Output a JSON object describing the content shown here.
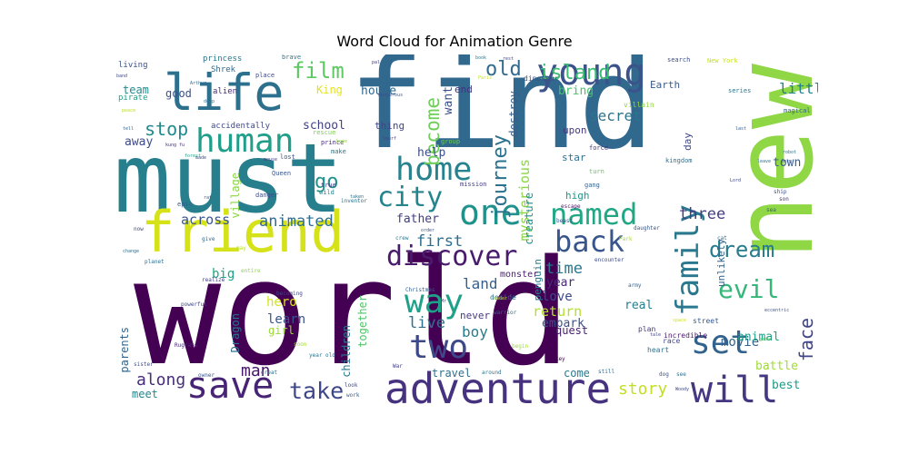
{
  "title": "Word Cloud for Animation Genre",
  "words": [
    {
      "text": "world",
      "color": "#440154",
      "weight": 100
    },
    {
      "text": "find",
      "color": "#31688e",
      "weight": 98
    },
    {
      "text": "new",
      "color": "#8fd744",
      "weight": 80
    },
    {
      "text": "must",
      "color": "#277f8e",
      "weight": 60
    },
    {
      "text": "friend",
      "color": "#d5e21a",
      "weight": 50
    },
    {
      "text": "life",
      "color": "#2d708e",
      "weight": 45
    },
    {
      "text": "adventure",
      "color": "#46327e",
      "weight": 42
    },
    {
      "text": "young",
      "color": "#3b528b",
      "weight": 40
    },
    {
      "text": "home",
      "color": "#26838e",
      "weight": 38
    },
    {
      "text": "save",
      "color": "#482475",
      "weight": 36
    },
    {
      "text": "one",
      "color": "#21918c",
      "weight": 35
    },
    {
      "text": "two",
      "color": "#3e4989",
      "weight": 34
    },
    {
      "text": "family",
      "color": "#2a788e",
      "weight": 33
    },
    {
      "text": "will",
      "color": "#453781",
      "weight": 32
    },
    {
      "text": "human",
      "color": "#1f9e89",
      "weight": 31
    },
    {
      "text": "named",
      "color": "#22a785",
      "weight": 30
    },
    {
      "text": "set",
      "color": "#33638d",
      "weight": 30
    },
    {
      "text": "back",
      "color": "#39568c",
      "weight": 29
    },
    {
      "text": "way",
      "color": "#1fa188",
      "weight": 28
    },
    {
      "text": "discover",
      "color": "#481b6d",
      "weight": 27
    },
    {
      "text": "evil",
      "color": "#35b779",
      "weight": 26
    },
    {
      "text": "city",
      "color": "#25848e",
      "weight": 25
    },
    {
      "text": "take",
      "color": "#3f4788",
      "weight": 24
    },
    {
      "text": "dream",
      "color": "#287c8e",
      "weight": 23
    },
    {
      "text": "film",
      "color": "#5ec962",
      "weight": 22
    },
    {
      "text": "journey",
      "color": "#2c728e",
      "weight": 22
    },
    {
      "text": "stop",
      "color": "#238a8d",
      "weight": 21
    },
    {
      "text": "go",
      "color": "#20928c",
      "weight": 20
    },
    {
      "text": "old",
      "color": "#306a8e",
      "weight": 20
    },
    {
      "text": "island",
      "color": "#3dbc74",
      "weight": 20
    },
    {
      "text": "become",
      "color": "#6ece58",
      "weight": 19
    },
    {
      "text": "face",
      "color": "#404588",
      "weight": 18
    },
    {
      "text": "along",
      "color": "#472d7b",
      "weight": 18
    },
    {
      "text": "animated",
      "color": "#2f6c8e",
      "weight": 17
    },
    {
      "text": "first",
      "color": "#2e6e8e",
      "weight": 17
    },
    {
      "text": "story",
      "color": "#c2df23",
      "weight": 17
    },
    {
      "text": "man",
      "color": "#481668",
      "weight": 17
    },
    {
      "text": "land",
      "color": "#34608d",
      "weight": 16
    },
    {
      "text": "live",
      "color": "#2e6f8e",
      "weight": 16
    },
    {
      "text": "time",
      "color": "#2a768e",
      "weight": 16
    },
    {
      "text": "three",
      "color": "#433d84",
      "weight": 16
    },
    {
      "text": "little",
      "color": "#26818e",
      "weight": 15
    },
    {
      "text": "secret",
      "color": "#2b748e",
      "weight": 15
    },
    {
      "text": "across",
      "color": "#39558c",
      "weight": 15
    },
    {
      "text": "boy",
      "color": "#297b8e",
      "weight": 15
    },
    {
      "text": "mysterious",
      "color": "#8bd646",
      "weight": 15
    },
    {
      "text": "return",
      "color": "#b5de2b",
      "weight": 14
    },
    {
      "text": "learn",
      "color": "#3a548c",
      "weight": 14
    },
    {
      "text": "hero",
      "color": "#d8e219",
      "weight": 14
    },
    {
      "text": "movie",
      "color": "#33628d",
      "weight": 14
    },
    {
      "text": "big",
      "color": "#20a386",
      "weight": 14
    },
    {
      "text": "love",
      "color": "#3f4889",
      "weight": 14
    },
    {
      "text": "animal",
      "color": "#1f9f88",
      "weight": 14
    },
    {
      "text": "house",
      "color": "#31678e",
      "weight": 13
    },
    {
      "text": "away",
      "color": "#3e4c8a",
      "weight": 13
    },
    {
      "text": "bring",
      "color": "#48c16e",
      "weight": 13
    },
    {
      "text": "want",
      "color": "#3c4f8a",
      "weight": 13
    },
    {
      "text": "help",
      "color": "#3d4d8a",
      "weight": 13
    },
    {
      "text": "town",
      "color": "#365d8d",
      "weight": 13
    },
    {
      "text": "school",
      "color": "#424186",
      "weight": 13
    },
    {
      "text": "father",
      "color": "#423f85",
      "weight": 13
    },
    {
      "text": "year",
      "color": "#482979",
      "weight": 13
    },
    {
      "text": "embark",
      "color": "#3c508b",
      "weight": 13
    },
    {
      "text": "quest",
      "color": "#481f70",
      "weight": 13
    },
    {
      "text": "real",
      "color": "#277e8e",
      "weight": 13
    },
    {
      "text": "battle",
      "color": "#a0da39",
      "weight": 13
    },
    {
      "text": "best",
      "color": "#1e9b8a",
      "weight": 13
    },
    {
      "text": "come",
      "color": "#29798e",
      "weight": 12
    },
    {
      "text": "travel",
      "color": "#2d718e",
      "weight": 12
    },
    {
      "text": "meet",
      "color": "#24868e",
      "weight": 12
    },
    {
      "text": "children",
      "color": "#2a778e",
      "weight": 12
    },
    {
      "text": "together",
      "color": "#52c569",
      "weight": 12
    },
    {
      "text": "creature",
      "color": "#20938c",
      "weight": 12
    },
    {
      "text": "destroy",
      "color": "#355f8d",
      "weight": 12
    },
    {
      "text": "team",
      "color": "#228b8d",
      "weight": 12
    },
    {
      "text": "King",
      "color": "#e5e419",
      "weight": 12
    },
    {
      "text": "good",
      "color": "#3b518b",
      "weight": 12
    },
    {
      "text": "girl",
      "color": "#9bd93c",
      "weight": 12
    },
    {
      "text": "parents",
      "color": "#32658e",
      "weight": 12
    },
    {
      "text": "Dragon",
      "color": "#2c738e",
      "weight": 12
    },
    {
      "text": "village",
      "color": "#8bd646",
      "weight": 12
    },
    {
      "text": "end",
      "color": "#46307e",
      "weight": 11
    },
    {
      "text": "Earth",
      "color": "#375a8c",
      "weight": 11
    },
    {
      "text": "thing",
      "color": "#414487",
      "weight": 11
    },
    {
      "text": "high",
      "color": "#1f968b",
      "weight": 11
    },
    {
      "text": "star",
      "color": "#2c718e",
      "weight": 11
    },
    {
      "text": "upon",
      "color": "#453882",
      "weight": 11
    },
    {
      "text": "day",
      "color": "#3f4788",
      "weight": 11
    },
    {
      "text": "penguin",
      "color": "#287d8e",
      "weight": 11
    },
    {
      "text": "unlikely",
      "color": "#32648e",
      "weight": 11
    },
    {
      "text": "never",
      "color": "#443983",
      "weight": 11
    },
    {
      "text": "monster",
      "color": "#481f70",
      "weight": 10
    },
    {
      "text": "accidentally",
      "color": "#3e4989",
      "weight": 9
    },
    {
      "text": "princess",
      "color": "#2a768e",
      "weight": 9
    },
    {
      "text": "Shrek",
      "color": "#31688e",
      "weight": 9
    },
    {
      "text": "living",
      "color": "#3a538b",
      "weight": 9
    },
    {
      "text": "alien",
      "color": "#472c7a",
      "weight": 9
    },
    {
      "text": "pirate",
      "color": "#1fa187",
      "weight": 9
    },
    {
      "text": "incredible",
      "color": "#48186a",
      "weight": 9
    },
    {
      "text": "heart",
      "color": "#2c738e",
      "weight": 8
    },
    {
      "text": "plan",
      "color": "#453781",
      "weight": 8
    },
    {
      "text": "race",
      "color": "#404688",
      "weight": 8
    },
    {
      "text": "street",
      "color": "#375b8d",
      "weight": 8
    },
    {
      "text": "decide",
      "color": "#2e6e8e",
      "weight": 8
    },
    {
      "text": "dinosaur",
      "color": "#3c4f8a",
      "weight": 8
    },
    {
      "text": "villain",
      "color": "#95d840",
      "weight": 8
    },
    {
      "text": "magical",
      "color": "#34618d",
      "weight": 7
    },
    {
      "text": "series",
      "color": "#2b758e",
      "weight": 7
    },
    {
      "text": "search",
      "color": "#3b518b",
      "weight": 7
    },
    {
      "text": "New York",
      "color": "#c8e020",
      "weight": 7
    },
    {
      "text": "brave",
      "color": "#29798e",
      "weight": 7
    },
    {
      "text": "place",
      "color": "#3e4a89",
      "weight": 7
    },
    {
      "text": "rescue",
      "color": "#7ad151",
      "weight": 7
    },
    {
      "text": "prince",
      "color": "#472a7a",
      "weight": 7
    },
    {
      "text": "mission",
      "color": "#423f85",
      "weight": 7
    },
    {
      "text": "group",
      "color": "#6ccd5a",
      "weight": 7
    },
    {
      "text": "kingdom",
      "color": "#2c728e",
      "weight": 7
    },
    {
      "text": "force",
      "color": "#46327e",
      "weight": 7
    },
    {
      "text": "turn",
      "color": "#5ec962",
      "weight": 7
    },
    {
      "text": "gang",
      "color": "#355e8d",
      "weight": 7
    },
    {
      "text": "wild",
      "color": "#26828e",
      "weight": 7
    },
    {
      "text": "true",
      "color": "#433e85",
      "weight": 7
    },
    {
      "text": "lost",
      "color": "#3b518b",
      "weight": 7
    },
    {
      "text": "make",
      "color": "#2a778e",
      "weight": 7
    },
    {
      "text": "Queen",
      "color": "#39568c",
      "weight": 7
    },
    {
      "text": "danger",
      "color": "#3e4a89",
      "weight": 7
    },
    {
      "text": "epic",
      "color": "#365c8d",
      "weight": 7
    },
    {
      "text": "inventor",
      "color": "#2c718e",
      "weight": 6
    },
    {
      "text": "crew",
      "color": "#2a788e",
      "weight": 6
    },
    {
      "text": "escape",
      "color": "#481467",
      "weight": 6
    },
    {
      "text": "beast",
      "color": "#3a548c",
      "weight": 6
    },
    {
      "text": "daughter",
      "color": "#39558c",
      "weight": 6
    },
    {
      "text": "son",
      "color": "#472e7c",
      "weight": 6
    },
    {
      "text": "ship",
      "color": "#3c4f8a",
      "weight": 6
    },
    {
      "text": "sea",
      "color": "#365d8d",
      "weight": 6
    },
    {
      "text": "cat",
      "color": "#2e6f8e",
      "weight": 6
    },
    {
      "text": "Park",
      "color": "#a8db34",
      "weight": 6
    },
    {
      "text": "give",
      "color": "#2f6b8e",
      "weight": 6
    },
    {
      "text": "planet",
      "color": "#2d718e",
      "weight": 6
    },
    {
      "text": "now",
      "color": "#3f4788",
      "weight": 6
    },
    {
      "text": "may",
      "color": "#b5de2b",
      "weight": 6
    },
    {
      "text": "realize",
      "color": "#433d84",
      "weight": 6
    },
    {
      "text": "powerful",
      "color": "#3f4889",
      "weight": 6
    },
    {
      "text": "entire",
      "color": "#8bd646",
      "weight": 6
    },
    {
      "text": "becoming",
      "color": "#404588",
      "weight": 6
    },
    {
      "text": "Christmas",
      "color": "#355e8d",
      "weight": 6
    },
    {
      "text": "warrior",
      "color": "#2e6d8e",
      "weight": 6
    },
    {
      "text": "army",
      "color": "#34618d",
      "weight": 6
    },
    {
      "text": "encounter",
      "color": "#3d4d8a",
      "weight": 6
    },
    {
      "text": "Rugrats",
      "color": "#482878",
      "weight": 6
    },
    {
      "text": "soon",
      "color": "#a2da37",
      "weight": 6
    },
    {
      "text": "begin",
      "color": "#9fda3a",
      "weight": 6
    },
    {
      "text": "year old",
      "color": "#2c728e",
      "weight": 6
    },
    {
      "text": "sister",
      "color": "#3d4e8a",
      "weight": 6
    },
    {
      "text": "owner",
      "color": "#3a538b",
      "weight": 6
    },
    {
      "text": "great",
      "color": "#2d708e",
      "weight": 6
    },
    {
      "text": "look",
      "color": "#3e4a89",
      "weight": 6
    },
    {
      "text": "work",
      "color": "#355f8d",
      "weight": 6
    },
    {
      "text": "War",
      "color": "#424086",
      "weight": 6
    },
    {
      "text": "around",
      "color": "#2b758e",
      "weight": 6
    },
    {
      "text": "monkey",
      "color": "#440154",
      "weight": 6
    },
    {
      "text": "still",
      "color": "#2f6c8e",
      "weight": 6
    },
    {
      "text": "dog",
      "color": "#3b528b",
      "weight": 6
    },
    {
      "text": "see",
      "color": "#2e6e8e",
      "weight": 6
    },
    {
      "text": "Woody",
      "color": "#3e4989",
      "weight": 5
    },
    {
      "text": "space",
      "color": "#d2e21b",
      "weight": 5
    },
    {
      "text": "tale",
      "color": "#414487",
      "weight": 5
    },
    {
      "text": "game",
      "color": "#5ec962",
      "weight": 5
    },
    {
      "text": "eccentric",
      "color": "#3b528b",
      "weight": 5
    },
    {
      "text": "robot",
      "color": "#2e6e8e",
      "weight": 5
    },
    {
      "text": "leave",
      "color": "#2d708e",
      "weight": 5
    },
    {
      "text": "form",
      "color": "#3a548c",
      "weight": 5
    },
    {
      "text": "Lord",
      "color": "#3f4788",
      "weight": 5
    },
    {
      "text": "last",
      "color": "#365d8d",
      "weight": 5
    },
    {
      "text": "hope",
      "color": "#95d840",
      "weight": 5
    },
    {
      "text": "made",
      "color": "#3e4c8a",
      "weight": 5
    },
    {
      "text": "rat",
      "color": "#3a538b",
      "weight": 5
    },
    {
      "text": "forest",
      "color": "#1fa188",
      "weight": 5
    },
    {
      "text": "kung fu",
      "color": "#46327e",
      "weight": 5
    },
    {
      "text": "tell",
      "color": "#33638d",
      "weight": 5
    },
    {
      "text": "peace",
      "color": "#b8de29",
      "weight": 5
    },
    {
      "text": "Arthur",
      "color": "#2f6b8e",
      "weight": 5
    },
    {
      "text": "band",
      "color": "#3e4a89",
      "weight": 5
    },
    {
      "text": "Paris",
      "color": "#c2df23",
      "weight": 5
    },
    {
      "text": "deep",
      "color": "#2d718e",
      "weight": 5
    },
    {
      "text": "pal",
      "color": "#433e85",
      "weight": 5
    },
    {
      "text": "dangerous",
      "color": "#3b528b",
      "weight": 5
    },
    {
      "text": "Smurf",
      "color": "#3e4989",
      "weight": 5
    },
    {
      "text": "book",
      "color": "#2a788e",
      "weight": 5
    },
    {
      "text": "rest",
      "color": "#3e4a89",
      "weight": 5
    },
    {
      "text": "mouse",
      "color": "#424186",
      "weight": 5
    },
    {
      "text": "taken",
      "color": "#2c728e",
      "weight": 5
    },
    {
      "text": "order",
      "color": "#3b518b",
      "weight": 5
    },
    {
      "text": "leader",
      "color": "#c2df23",
      "weight": 5
    },
    {
      "text": "change",
      "color": "#2e6f8e",
      "weight": 5
    },
    {
      "text": "Mr",
      "color": "#3e4c8a",
      "weight": 5
    }
  ]
}
